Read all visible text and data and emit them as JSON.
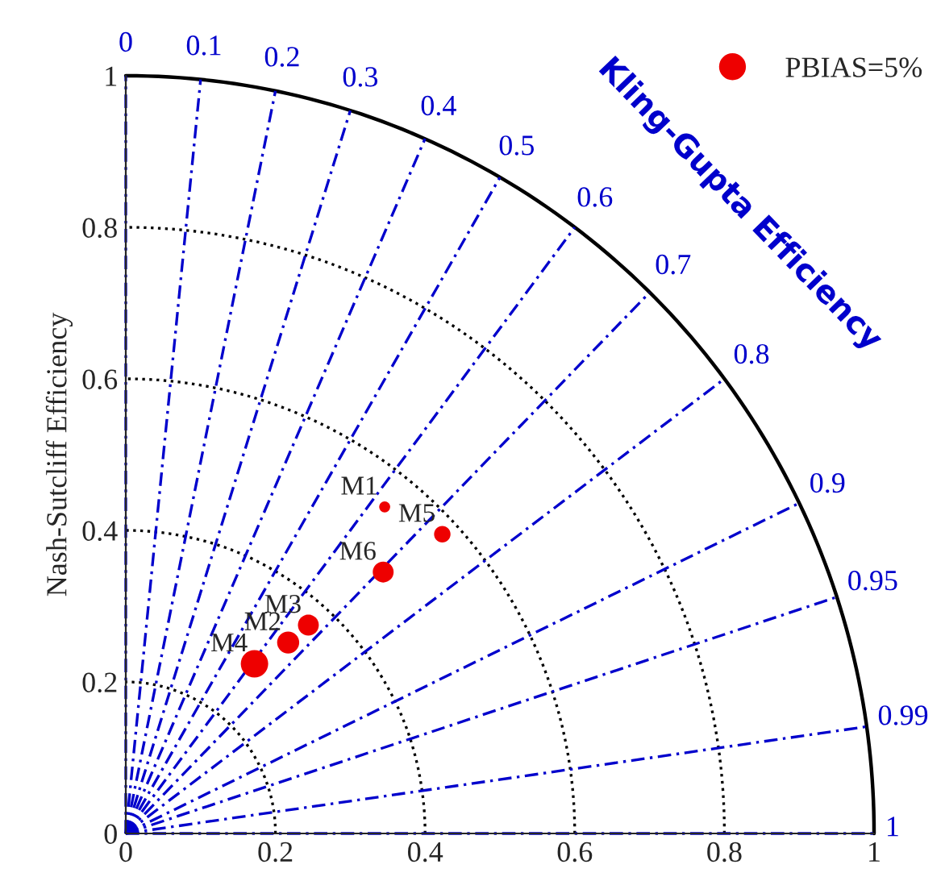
{
  "chart_data": {
    "type": "bubble",
    "ylabel": "Nash-Sutcliff Efficiency",
    "x": [
      0.346,
      0.217,
      0.244,
      0.172,
      0.423,
      0.344
    ],
    "series": [
      {
        "name": "PBIAS=5%",
        "color": "#ee0000",
        "marker": "circle",
        "values": [
          0.431,
          0.252,
          0.275,
          0.224,
          0.395,
          0.345
        ],
        "sizes": [
          0.16,
          0.65,
          0.58,
          1,
          0.36,
          0.58
        ]
      },
      {
        "type": "line",
        "color": "#000000",
        "line_style": "dotted",
        "x": [
          0.2,
          0.197,
          0.188,
          0.173,
          0.153,
          0.129,
          0.1,
          0.068,
          0.035,
          0
        ],
        "values": [
          0,
          0.035,
          0.068,
          0.1,
          0.129,
          0.153,
          0.173,
          0.188,
          0.197,
          0.2
        ]
      },
      {
        "type": "line",
        "color": "#000000",
        "line_style": "dotted",
        "x": [
          0.4,
          0.394,
          0.376,
          0.346,
          0.306,
          0.257,
          0.2,
          0.137,
          0.069,
          0
        ],
        "values": [
          0,
          0.069,
          0.137,
          0.2,
          0.257,
          0.306,
          0.346,
          0.376,
          0.394,
          0.4
        ]
      },
      {
        "type": "line",
        "color": "#000000",
        "line_style": "dotted",
        "x": [
          0.6,
          0.591,
          0.564,
          0.52,
          0.46,
          0.386,
          0.3,
          0.205,
          0.104,
          0
        ],
        "values": [
          0,
          0.104,
          0.205,
          0.3,
          0.386,
          0.46,
          0.52,
          0.564,
          0.591,
          0.6
        ]
      },
      {
        "type": "line",
        "color": "#000000",
        "line_style": "dotted",
        "x": [
          0.8,
          0.788,
          0.752,
          0.693,
          0.613,
          0.514,
          0.4,
          0.274,
          0.139,
          0
        ],
        "values": [
          0,
          0.139,
          0.274,
          0.4,
          0.514,
          0.613,
          0.693,
          0.752,
          0.788,
          0.8
        ]
      },
      {
        "type": "line",
        "color": "#000000",
        "line_style": "solid",
        "x": [
          1,
          0.985,
          0.94,
          0.866,
          0.766,
          0.643,
          0.5,
          0.342,
          0.174,
          0
        ],
        "values": [
          0,
          0.174,
          0.342,
          0.5,
          0.643,
          0.766,
          0.866,
          0.94,
          0.985,
          1
        ]
      },
      {
        "type": "line",
        "color": "#0000cc",
        "line_style": "dashed",
        "x": [
          0,
          0
        ],
        "values": [
          0,
          1
        ]
      },
      {
        "type": "line",
        "color": "#0000cc",
        "line_style": "dashed",
        "x": [
          0,
          0.1
        ],
        "values": [
          0,
          0.995
        ]
      },
      {
        "type": "line",
        "color": "#0000cc",
        "line_style": "dashed",
        "x": [
          0,
          0.2
        ],
        "values": [
          0,
          0.98
        ]
      },
      {
        "type": "line",
        "color": "#0000cc",
        "line_style": "dashed",
        "x": [
          0,
          0.3
        ],
        "values": [
          0,
          0.954
        ]
      },
      {
        "type": "line",
        "color": "#0000cc",
        "line_style": "dashed",
        "x": [
          0,
          0.4
        ],
        "values": [
          0,
          0.917
        ]
      },
      {
        "type": "line",
        "color": "#0000cc",
        "line_style": "dashed",
        "x": [
          0,
          0.5
        ],
        "values": [
          0,
          0.866
        ]
      },
      {
        "type": "line",
        "color": "#0000cc",
        "line_style": "dashed",
        "x": [
          0,
          0.6
        ],
        "values": [
          0,
          0.8
        ]
      },
      {
        "type": "line",
        "color": "#0000cc",
        "line_style": "dashed",
        "x": [
          0,
          0.7
        ],
        "values": [
          0,
          0.714
        ]
      },
      {
        "type": "line",
        "color": "#0000cc",
        "line_style": "dashed",
        "x": [
          0,
          0.8
        ],
        "values": [
          0,
          0.6
        ]
      },
      {
        "type": "line",
        "color": "#0000cc",
        "line_style": "dashed",
        "x": [
          0,
          0.9
        ],
        "values": [
          0,
          0.436
        ]
      },
      {
        "type": "line",
        "color": "#0000cc",
        "line_style": "dashed",
        "x": [
          0,
          0.95
        ],
        "values": [
          0,
          0.312
        ]
      },
      {
        "type": "line",
        "color": "#0000cc",
        "line_style": "dashed",
        "x": [
          0,
          0.99
        ],
        "values": [
          0,
          0.141
        ]
      },
      {
        "type": "line",
        "color": "#0000cc",
        "line_style": "dashed",
        "x": [
          0,
          1
        ],
        "values": [
          0,
          0
        ]
      }
    ],
    "xlim": [
      0,
      1
    ],
    "ylim": [
      0,
      1
    ],
    "xticks": [
      0,
      0.2,
      0.4,
      0.6,
      0.8,
      1
    ],
    "yticks": [
      0,
      0.2,
      0.4,
      0.6,
      0.8,
      1
    ],
    "legend": "top right",
    "annotations": [
      {
        "text": "M1",
        "x": 0.346,
        "y": 0.431
      },
      {
        "text": "M2",
        "x": 0.217,
        "y": 0.252
      },
      {
        "text": "M3",
        "x": 0.244,
        "y": 0.275
      },
      {
        "text": "M4",
        "x": 0.172,
        "y": 0.224
      },
      {
        "text": "M5",
        "x": 0.423,
        "y": 0.395
      },
      {
        "text": "M6",
        "x": 0.344,
        "y": 0.345
      },
      {
        "text": "0",
        "x": 0,
        "y": 1
      },
      {
        "text": "0.1",
        "x": 0.1,
        "y": 0.995
      },
      {
        "text": "0.2",
        "x": 0.2,
        "y": 0.98
      },
      {
        "text": "0.3",
        "x": 0.3,
        "y": 0.954
      },
      {
        "text": "0.4",
        "x": 0.4,
        "y": 0.917
      },
      {
        "text": "0.5",
        "x": 0.5,
        "y": 0.866
      },
      {
        "text": "0.6",
        "x": 0.6,
        "y": 0.8
      },
      {
        "text": "0.7",
        "x": 0.7,
        "y": 0.714
      },
      {
        "text": "0.8",
        "x": 0.8,
        "y": 0.6
      },
      {
        "text": "0.9",
        "x": 0.9,
        "y": 0.436
      },
      {
        "text": "0.95",
        "x": 0.95,
        "y": 0.312
      },
      {
        "text": "0.99",
        "x": 0.99,
        "y": 0.141
      },
      {
        "text": "1",
        "x": 1,
        "y": 0
      },
      "Kling-Gupta Efficiency"
    ]
  }
}
